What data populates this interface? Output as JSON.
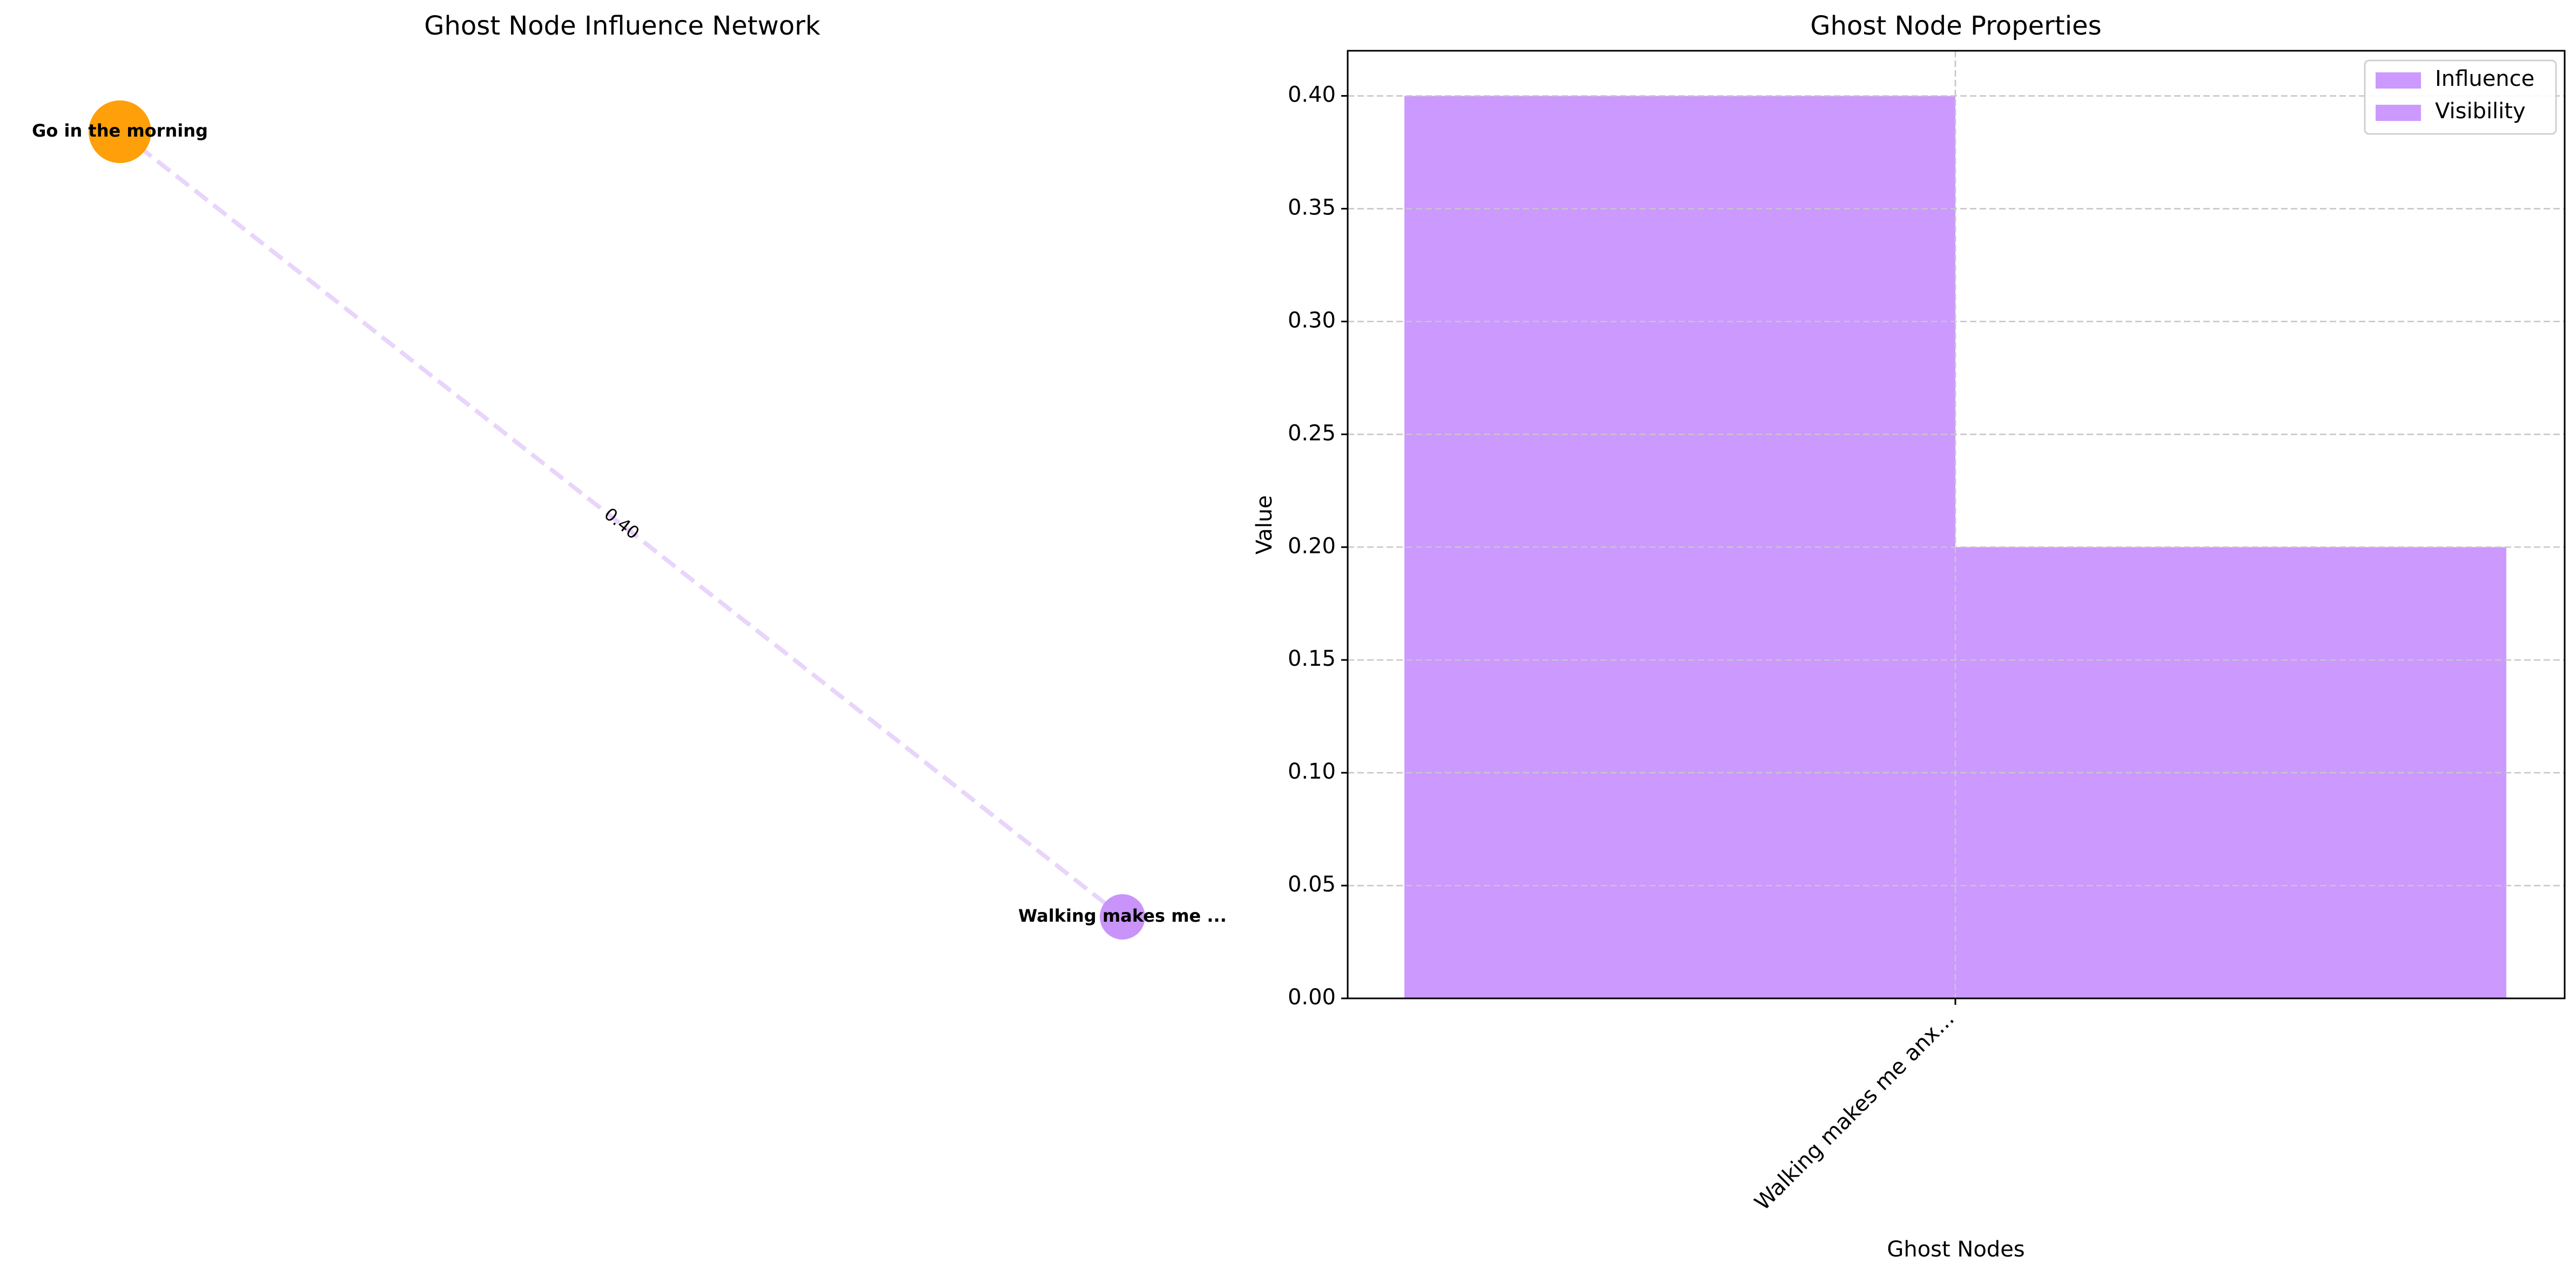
{
  "chart_data": [
    {
      "type": "network",
      "title": "Ghost Node Influence Network",
      "nodes": [
        {
          "id": "go",
          "label": "Go in the morning",
          "color": "#ff9f0a",
          "size": "large"
        },
        {
          "id": "walk",
          "label": "Walking makes me ...",
          "color": "#c994fa",
          "size": "small"
        }
      ],
      "edges": [
        {
          "source": "go",
          "target": "walk",
          "weight": 0.4,
          "label": "0.40",
          "color": "#e9d4fc",
          "style": "dashed"
        }
      ]
    },
    {
      "type": "bar",
      "title": "Ghost Node Properties",
      "xlabel": "Ghost Nodes",
      "ylabel": "Value",
      "categories": [
        "Walking makes me anx..."
      ],
      "series": [
        {
          "name": "Influence",
          "values": [
            0.4
          ],
          "color": "#cc99ff"
        },
        {
          "name": "Visibility",
          "values": [
            0.2
          ],
          "color": "#cc99ff"
        }
      ],
      "ylim": [
        0,
        0.42
      ],
      "yticks": [
        "0.00",
        "0.05",
        "0.10",
        "0.15",
        "0.20",
        "0.25",
        "0.30",
        "0.35",
        "0.40"
      ],
      "grid": true,
      "legend_position": "top-right"
    }
  ]
}
